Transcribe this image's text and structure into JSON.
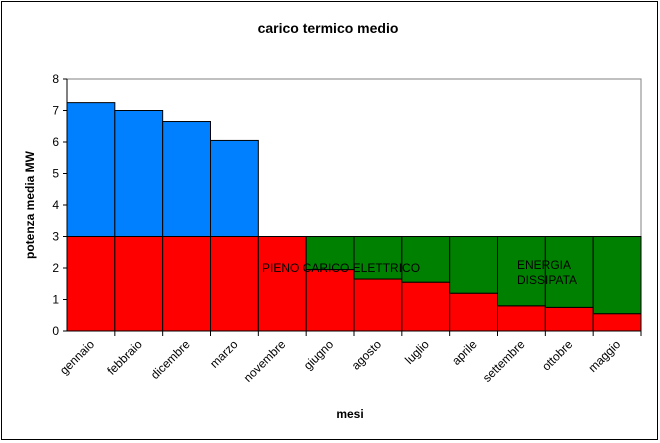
{
  "chart_data": {
    "type": "bar",
    "title": "carico termico medio",
    "x_label": "mesi",
    "y_label": "potenza media MW",
    "categories": [
      "gennaio",
      "febbraio",
      "dicembre",
      "marzo",
      "novembre",
      "giugno",
      "agosto",
      "luglio",
      "aprile",
      "settembre",
      "ottobre",
      "maggio"
    ],
    "values": [
      7.25,
      7.0,
      6.65,
      6.05,
      3.0,
      1.95,
      1.65,
      1.55,
      1.2,
      0.8,
      0.75,
      0.55
    ],
    "threshold": 3,
    "colors": {
      "above": "#0080ff",
      "below": "#ff0000",
      "gap": "#008000"
    },
    "ylim": [
      0,
      8
    ],
    "yticks": [
      0,
      1,
      2,
      3,
      4,
      5,
      6,
      7,
      8
    ],
    "annotations": [
      {
        "lines": [
          "PIENO CARICO ELETTRICO"
        ]
      },
      {
        "lines": [
          "ENERGIA",
          "DISSIPATA"
        ]
      }
    ]
  }
}
